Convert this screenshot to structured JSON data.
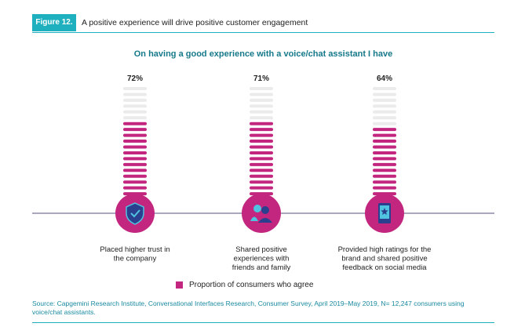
{
  "header": {
    "figure_label": "Figure 12.",
    "title": "A positive experience will drive positive customer engagement"
  },
  "colors": {
    "accent": "#c2267e",
    "track": "#ebebeb",
    "teal": "#1fb0bf",
    "title": "#16798a",
    "axis": "#5b4d80"
  },
  "chart_data": {
    "type": "bar",
    "title": "On having a good experience with a voice/chat assistant I have",
    "categories": [
      "Placed higher trust in the company",
      "Shared positive experiences with friends and family",
      "Provided high ratings for the brand and shared positive feedback on social media"
    ],
    "category_lines": [
      [
        "Placed higher trust in",
        "the company"
      ],
      [
        "Shared positive",
        "experiences with",
        "friends and family"
      ],
      [
        "Provided high ratings for the",
        "brand and shared positive",
        "feedback on social media"
      ]
    ],
    "icons": [
      "shield-check-icon",
      "people-icon",
      "phone-star-icon"
    ],
    "series": [
      {
        "name": "Proportion of consumers who agree",
        "values": [
          72,
          71,
          64
        ]
      }
    ],
    "value_labels": [
      "72%",
      "71%",
      "64%"
    ],
    "ylim": [
      0,
      100
    ],
    "grid": false,
    "legend_position": "bottom-center"
  },
  "legend": {
    "label": "Proportion of consumers who agree"
  },
  "source": "Source: Capgemini Research Institute, Conversational Interfaces Research, Consumer Survey, April 2019–May 2019, N= 12,247 consumers using voice/chat assistants."
}
